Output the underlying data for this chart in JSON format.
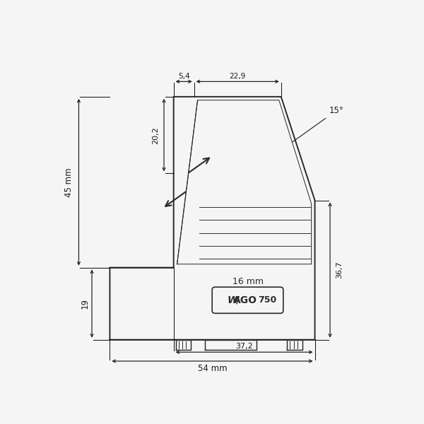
{
  "bg_color": "#f5f5f5",
  "line_color": "#2a2a2a",
  "dim_color": "#1a1a1a",
  "fig_size": [
    6.0,
    6.0
  ],
  "dpi": 100,
  "label_16mm": "16 mm",
  "dim_54mm": "54 mm",
  "dim_37_2": "37,2",
  "dim_45mm": "45 mm",
  "dim_19": "19",
  "dim_20_2": "20,2",
  "dim_5_4": "5,4",
  "dim_22_9": "22,9",
  "dim_36_7": "36,7",
  "dim_15deg": "15°"
}
